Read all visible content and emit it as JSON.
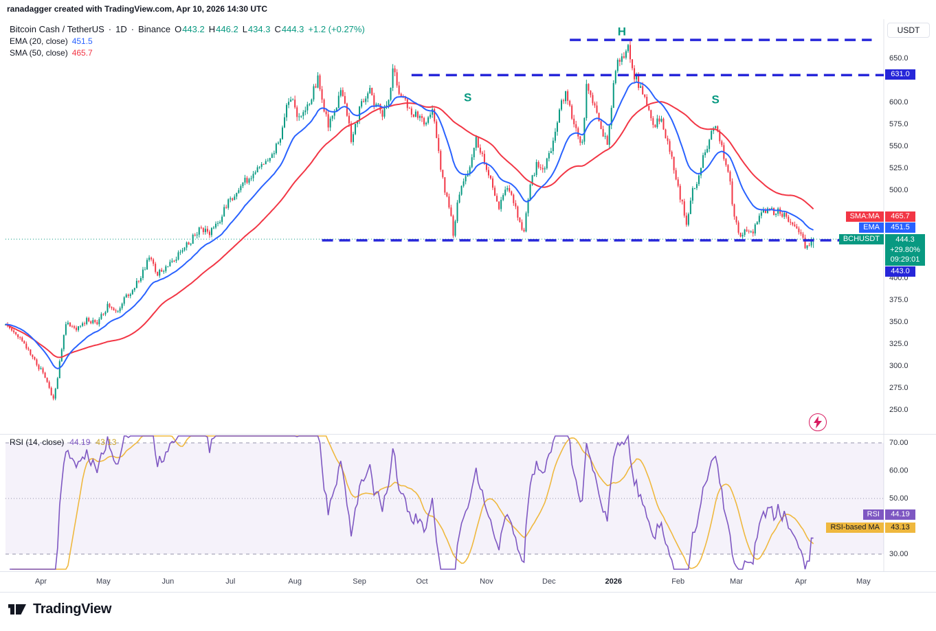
{
  "credit": "ranadagger created with TradingView.com, Apr 10, 2026 14:30 UTC",
  "legend": {
    "symbol": "Bitcoin Cash / TetherUS",
    "sep1": "·",
    "interval": "1D",
    "sep2": "·",
    "exchange": "Binance",
    "o_label": "O",
    "o": "443.2",
    "h_label": "H",
    "h": "446.2",
    "l_label": "L",
    "l": "434.3",
    "c_label": "C",
    "c": "444.3",
    "change": "+1.2 (+0.27%)",
    "ema_label": "EMA (20, close)",
    "ema_value": "451.5",
    "sma_label": "SMA (50, close)",
    "sma_value": "465.7",
    "rsi_label": "RSI (14, close)",
    "rsi_value": "44.19",
    "rsi_ma_value": "43.13"
  },
  "price_axis": {
    "unit": "USDT",
    "ticks": [
      {
        "label": "650.0",
        "price": 650
      },
      {
        "label": "600.0",
        "price": 600
      },
      {
        "label": "575.0",
        "price": 575
      },
      {
        "label": "550.0",
        "price": 550
      },
      {
        "label": "525.0",
        "price": 525
      },
      {
        "label": "500.0",
        "price": 500
      },
      {
        "label": "400.0",
        "price": 400
      },
      {
        "label": "375.0",
        "price": 375
      },
      {
        "label": "350.0",
        "price": 350
      },
      {
        "label": "325.0",
        "price": 325
      },
      {
        "label": "300.0",
        "price": 300
      },
      {
        "label": "275.0",
        "price": 275
      },
      {
        "label": "250.0",
        "price": 250
      }
    ]
  },
  "rsi_axis": {
    "ticks": [
      {
        "label": "70.00",
        "value": 70
      },
      {
        "label": "60.00",
        "value": 60
      },
      {
        "label": "50.00",
        "value": 50
      },
      {
        "label": "30.00",
        "value": 30
      }
    ]
  },
  "time_axis": {
    "ticks": [
      {
        "label": "Apr",
        "day": 17,
        "major": false
      },
      {
        "label": "May",
        "day": 47,
        "major": false
      },
      {
        "label": "Jun",
        "day": 78,
        "major": false
      },
      {
        "label": "Jul",
        "day": 108,
        "major": false
      },
      {
        "label": "Aug",
        "day": 139,
        "major": false
      },
      {
        "label": "Sep",
        "day": 170,
        "major": false
      },
      {
        "label": "Oct",
        "day": 200,
        "major": false
      },
      {
        "label": "Nov",
        "day": 231,
        "major": false
      },
      {
        "label": "Dec",
        "day": 261,
        "major": false
      },
      {
        "label": "2026",
        "day": 292,
        "major": true
      },
      {
        "label": "Feb",
        "day": 323,
        "major": false
      },
      {
        "label": "Mar",
        "day": 351,
        "major": false
      },
      {
        "label": "Apr",
        "day": 382,
        "major": false
      },
      {
        "label": "May",
        "day": 412,
        "major": false
      }
    ]
  },
  "badges": {
    "level_upper": "631.0",
    "level_neck": "443.0",
    "sma_tag": "SMA:MA",
    "sma_value": "465.7",
    "ema_tag": "EMA",
    "ema_value": "451.5",
    "symbol_tag": "BCHUSDT",
    "symbol_price": "444.3",
    "symbol_change": "+29.80%",
    "symbol_countdown": "09:29:01",
    "rsi_tag": "RSI",
    "rsi_value": "44.19",
    "rsi_ma_tag": "RSI-based MA",
    "rsi_ma_value": "43.13"
  },
  "logo": {
    "text": "TradingView"
  },
  "colors": {
    "up": "#089981",
    "down": "#f23645",
    "ema": "#2962ff",
    "sma": "#f23645",
    "drawing": "#2626d9",
    "rsi": "#7e57c2",
    "rsi_ma": "#efb83e",
    "rsi_band": "rgba(126,87,194,0.08)",
    "rsi_level": "#9393a9",
    "annotation": "#089981",
    "axis_text": "#2a2e39",
    "chrome": "#e0e3eb"
  },
  "chart_data": {
    "type": "candlestick",
    "title": "Bitcoin Cash / TetherUS, 1D, Binance",
    "start_date": "2025-03-15",
    "days": 389,
    "last": {
      "o": 443.2,
      "h": 446.2,
      "l": 434.3,
      "c": 444.3
    },
    "price_range": [
      250,
      672
    ],
    "indicators": {
      "ema_length": 20,
      "ema_last": 451.5,
      "sma_length": 50,
      "sma_last": 465.7,
      "rsi_length": 14,
      "rsi_last": 44.19,
      "rsi_ma_length": 14,
      "rsi_ma_last": 43.13
    },
    "rsi_levels": [
      70,
      50,
      30
    ],
    "levels": [
      {
        "price": 671,
        "day_start": 271,
        "day_end": 416,
        "style": "dashed"
      },
      {
        "price": 631,
        "day_start": 195,
        "day_end": 422,
        "style": "dashed",
        "label": "631.0"
      },
      {
        "price": 443,
        "day_start": 152,
        "day_end": 422,
        "style": "dashed",
        "label": "443.0"
      }
    ],
    "annotations": [
      {
        "label": "S",
        "day": 222,
        "price": 601
      },
      {
        "label": "H",
        "day": 296,
        "price": 676
      },
      {
        "label": "S",
        "day": 341,
        "price": 599
      }
    ],
    "anchors": [
      [
        0,
        345
      ],
      [
        7,
        333
      ],
      [
        14,
        305
      ],
      [
        18,
        292
      ],
      [
        23,
        262
      ],
      [
        25,
        288
      ],
      [
        29,
        350
      ],
      [
        34,
        340
      ],
      [
        39,
        352
      ],
      [
        44,
        348
      ],
      [
        49,
        368
      ],
      [
        53,
        362
      ],
      [
        58,
        378
      ],
      [
        63,
        394
      ],
      [
        69,
        422
      ],
      [
        73,
        404
      ],
      [
        78,
        416
      ],
      [
        83,
        426
      ],
      [
        88,
        440
      ],
      [
        93,
        455
      ],
      [
        98,
        450
      ],
      [
        103,
        468
      ],
      [
        108,
        490
      ],
      [
        113,
        505
      ],
      [
        118,
        518
      ],
      [
        123,
        530
      ],
      [
        128,
        542
      ],
      [
        132,
        560
      ],
      [
        135,
        600
      ],
      [
        138,
        598
      ],
      [
        141,
        580
      ],
      [
        144,
        592
      ],
      [
        147,
        606
      ],
      [
        150,
        628
      ],
      [
        152,
        602
      ],
      [
        155,
        576
      ],
      [
        158,
        590
      ],
      [
        161,
        612
      ],
      [
        164,
        586
      ],
      [
        166,
        558
      ],
      [
        169,
        584
      ],
      [
        172,
        604
      ],
      [
        175,
        614
      ],
      [
        177,
        600
      ],
      [
        181,
        586
      ],
      [
        184,
        604
      ],
      [
        186,
        640
      ],
      [
        189,
        614
      ],
      [
        192,
        600
      ],
      [
        195,
        590
      ],
      [
        199,
        584
      ],
      [
        201,
        574
      ],
      [
        205,
        590
      ],
      [
        208,
        540
      ],
      [
        211,
        500
      ],
      [
        214,
        470
      ],
      [
        215,
        452
      ],
      [
        217,
        482
      ],
      [
        219,
        508
      ],
      [
        223,
        524
      ],
      [
        226,
        558
      ],
      [
        228,
        545
      ],
      [
        232,
        520
      ],
      [
        234,
        500
      ],
      [
        237,
        482
      ],
      [
        240,
        504
      ],
      [
        243,
        494
      ],
      [
        246,
        470
      ],
      [
        249,
        452
      ],
      [
        252,
        508
      ],
      [
        255,
        528
      ],
      [
        258,
        524
      ],
      [
        261,
        538
      ],
      [
        264,
        564
      ],
      [
        266,
        592
      ],
      [
        269,
        608
      ],
      [
        272,
        584
      ],
      [
        274,
        570
      ],
      [
        277,
        552
      ],
      [
        279,
        616
      ],
      [
        282,
        600
      ],
      [
        284,
        586
      ],
      [
        287,
        566
      ],
      [
        289,
        556
      ],
      [
        292,
        618
      ],
      [
        294,
        644
      ],
      [
        297,
        654
      ],
      [
        299,
        660
      ],
      [
        301,
        636
      ],
      [
        304,
        622
      ],
      [
        307,
        608
      ],
      [
        309,
        586
      ],
      [
        312,
        576
      ],
      [
        315,
        586
      ],
      [
        317,
        560
      ],
      [
        320,
        536
      ],
      [
        322,
        510
      ],
      [
        325,
        484
      ],
      [
        327,
        458
      ],
      [
        330,
        498
      ],
      [
        333,
        518
      ],
      [
        335,
        536
      ],
      [
        338,
        554
      ],
      [
        340,
        574
      ],
      [
        343,
        560
      ],
      [
        345,
        540
      ],
      [
        348,
        506
      ],
      [
        350,
        468
      ],
      [
        353,
        446
      ],
      [
        356,
        454
      ],
      [
        358,
        450
      ],
      [
        361,
        464
      ],
      [
        363,
        474
      ],
      [
        366,
        480
      ],
      [
        369,
        474
      ],
      [
        371,
        478
      ],
      [
        374,
        470
      ],
      [
        377,
        464
      ],
      [
        379,
        455
      ],
      [
        382,
        450
      ],
      [
        384,
        436
      ],
      [
        386,
        438
      ],
      [
        388,
        444.3
      ]
    ]
  }
}
